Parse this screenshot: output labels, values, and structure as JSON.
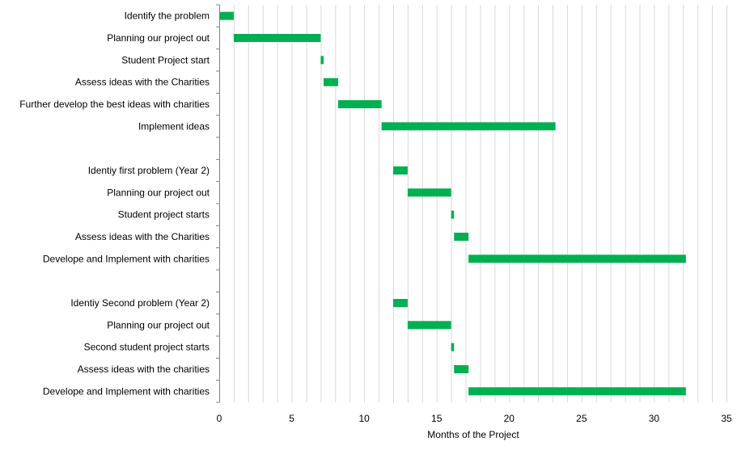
{
  "chart_data": {
    "type": "bar",
    "orientation": "horizontal",
    "stacked_offset": true,
    "title": "",
    "xlabel": "Months of the Project",
    "ylabel": "",
    "xlim": [
      0,
      35
    ],
    "xticks": [
      0,
      5,
      10,
      15,
      20,
      25,
      30,
      35
    ],
    "grid": "vertical, every 1 month",
    "legend": "none",
    "bar_color": "#00B050",
    "tasks": [
      {
        "label": "Identify the problem",
        "start": 0,
        "duration": 1
      },
      {
        "label": "Planning our project out",
        "start": 1,
        "duration": 6
      },
      {
        "label": "Student Project start",
        "start": 7,
        "duration": 0.2
      },
      {
        "label": "Assess ideas with the Charities",
        "start": 7.2,
        "duration": 1
      },
      {
        "label": "Further develop the best ideas with charities",
        "start": 8.2,
        "duration": 3
      },
      {
        "label": "Implement ideas",
        "start": 11.2,
        "duration": 12
      },
      {
        "label": "",
        "start": null,
        "duration": null
      },
      {
        "label": "Identiy first problem (Year 2)",
        "start": 12,
        "duration": 1
      },
      {
        "label": "Planning our project out",
        "start": 13,
        "duration": 3
      },
      {
        "label": "Student project starts",
        "start": 16,
        "duration": 0.2
      },
      {
        "label": "Assess ideas with the Charities",
        "start": 16.2,
        "duration": 1
      },
      {
        "label": "Develope and Implement with charities",
        "start": 17.2,
        "duration": 15
      },
      {
        "label": "",
        "start": null,
        "duration": null
      },
      {
        "label": "Identiy Second problem (Year 2)",
        "start": 12,
        "duration": 1
      },
      {
        "label": "Planning our project out",
        "start": 13,
        "duration": 3
      },
      {
        "label": "Second student project starts",
        "start": 16,
        "duration": 0.2
      },
      {
        "label": "Assess ideas with the charities",
        "start": 16.2,
        "duration": 1
      },
      {
        "label": "Develope and Implement with charities",
        "start": 17.2,
        "duration": 15
      }
    ]
  }
}
